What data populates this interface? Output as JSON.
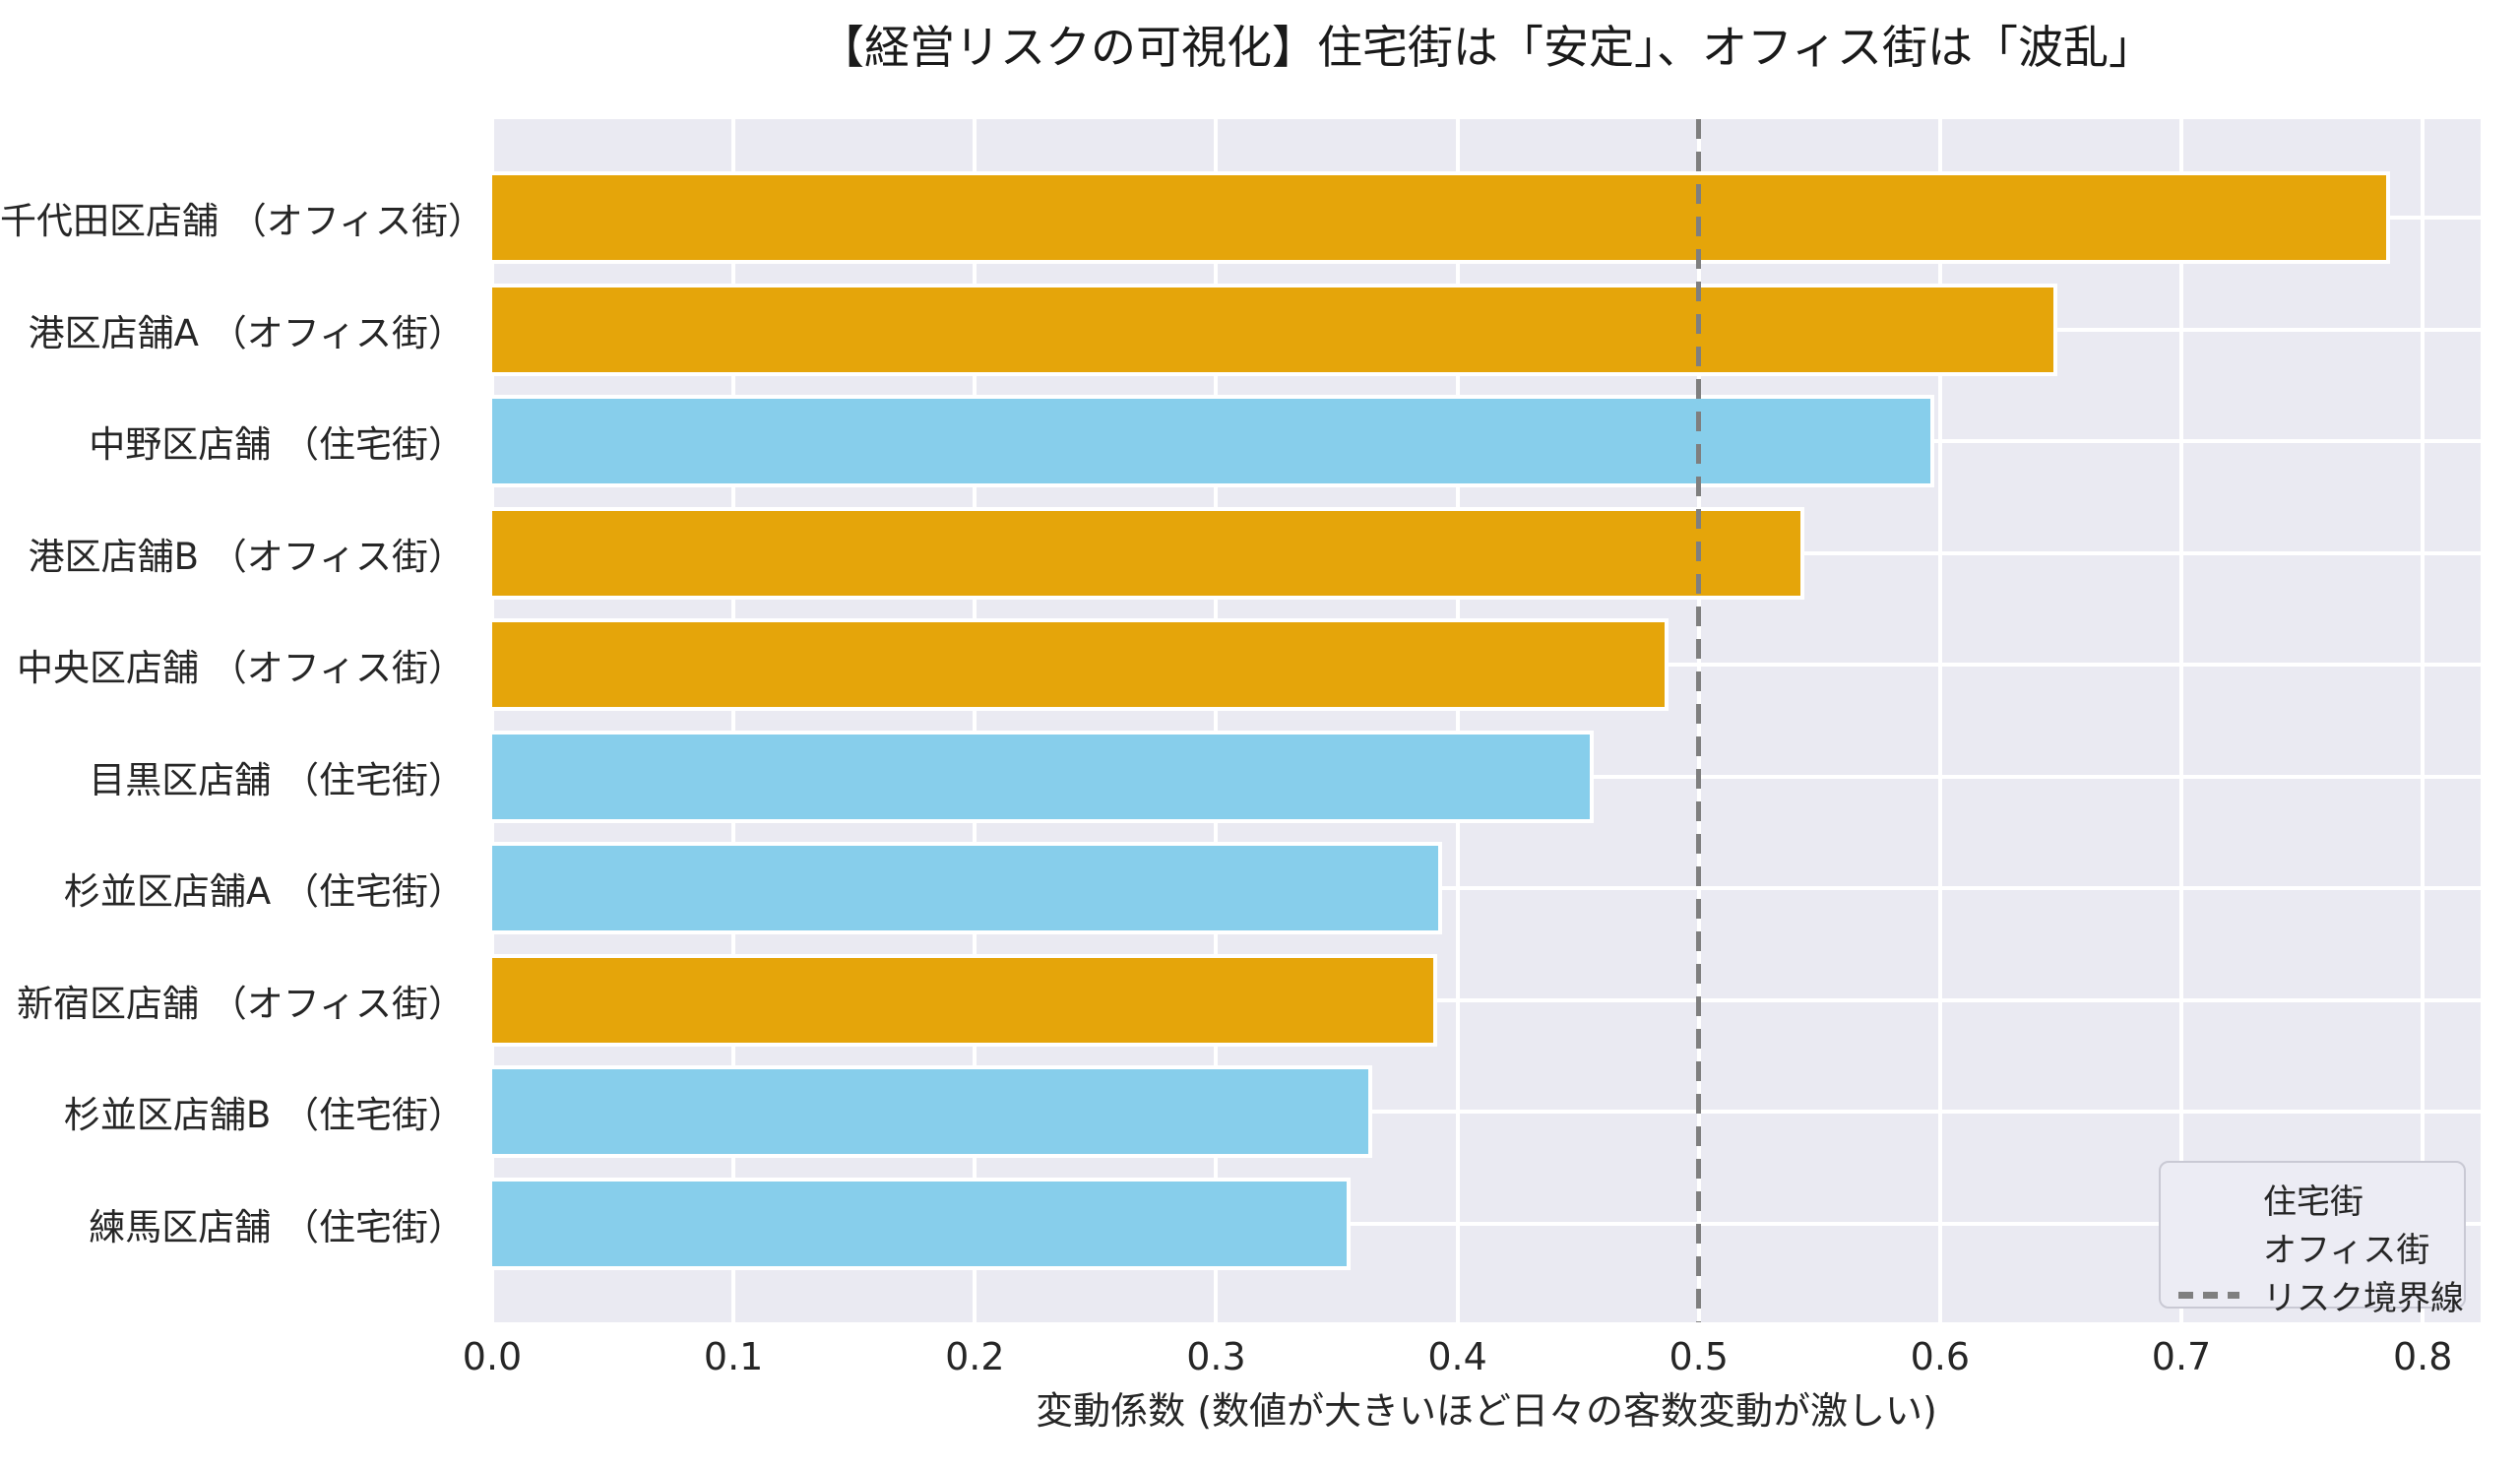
{
  "chart_data": {
    "type": "bar",
    "orientation": "horizontal",
    "title": "【経営リスクの可視化】住宅街は「安定」、オフィス街は「波乱」",
    "xlabel": "変動係数 (数値が大きいほど日々の客数変動が激しい)",
    "categories": [
      "千代田区店舗 （オフィス街）",
      "港区店舗A （オフィス街）",
      "中野区店舗 （住宅街）",
      "港区店舗B （オフィス街）",
      "中央区店舗 （オフィス街）",
      "目黒区店舗 （住宅街）",
      "杉並区店舗A （住宅街）",
      "新宿区店舗 （オフィス街）",
      "杉並区店舗B （住宅街）",
      "練馬区店舗 （住宅街）"
    ],
    "values": [
      0.785,
      0.647,
      0.596,
      0.542,
      0.486,
      0.455,
      0.392,
      0.39,
      0.363,
      0.354
    ],
    "groups": [
      "オフィス街",
      "オフィス街",
      "住宅街",
      "オフィス街",
      "オフィス街",
      "住宅街",
      "住宅街",
      "オフィス街",
      "住宅街",
      "住宅街"
    ],
    "xlim": [
      0,
      0.824
    ],
    "xticks": [
      "0.0",
      "0.1",
      "0.2",
      "0.3",
      "0.4",
      "0.5",
      "0.6",
      "0.7",
      "0.8"
    ],
    "threshold": 0.5,
    "grid": true,
    "panel_color": "#EAEAF2",
    "grid_color": "#FFFFFF",
    "text_color": "#262626",
    "colors": {
      "住宅街": "#87CEEB",
      "オフィス街": "#E5A50A",
      "threshold": "#7F7F7F"
    },
    "legend": {
      "position": "lower right",
      "entries": [
        {
          "label": "住宅街",
          "type": "patch",
          "color": "#87CEEB"
        },
        {
          "label": "オフィス街",
          "type": "patch",
          "color": "#E5A50A"
        },
        {
          "label": "リスク境界線",
          "type": "dashed-line",
          "color": "#7F7F7F"
        }
      ]
    }
  }
}
